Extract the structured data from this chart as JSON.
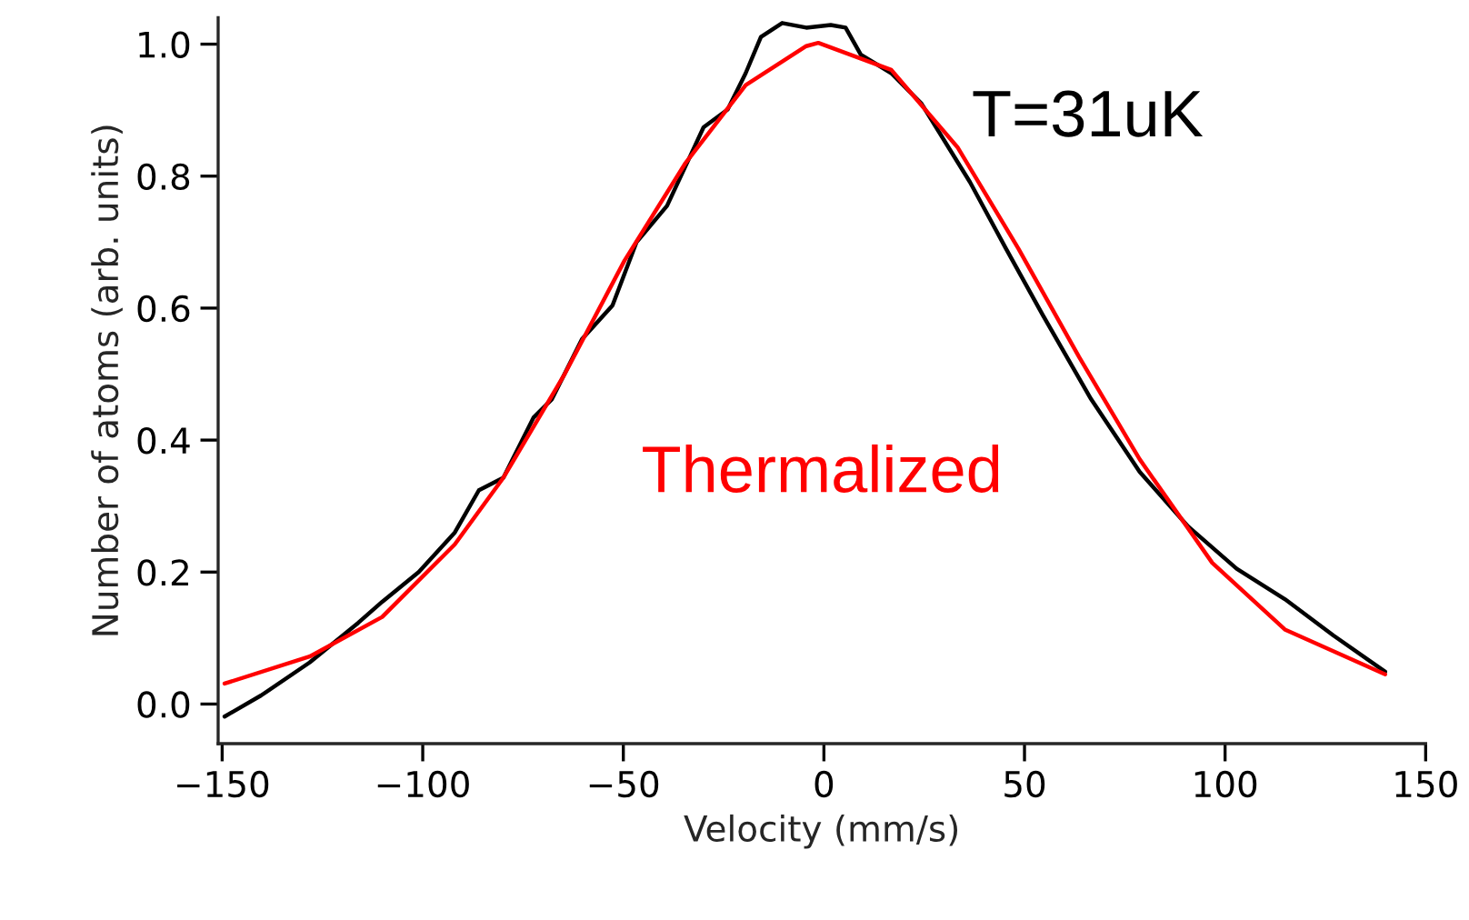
{
  "chart_data": {
    "type": "line",
    "xlabel": "Velocity (mm/s)",
    "ylabel": "Number of atoms (arb. units)",
    "xlim": [
      -151,
      150
    ],
    "ylim": [
      -0.06,
      1.04
    ],
    "xticks": [
      {
        "value": -150,
        "label": "−150"
      },
      {
        "value": -100,
        "label": "−100"
      },
      {
        "value": -50,
        "label": "−50"
      },
      0,
      50,
      100,
      150
    ],
    "yticks": [
      {
        "value": 0,
        "label": "0.0"
      },
      {
        "value": 0.2,
        "label": "0.2"
      },
      {
        "value": 0.4,
        "label": "0.4"
      },
      {
        "value": 0.6,
        "label": "0.6"
      },
      {
        "value": 0.8,
        "label": "0.8"
      },
      {
        "value": 1,
        "label": "1.0"
      }
    ],
    "grid": false,
    "legend": false,
    "marker": "none",
    "line_style": "solid",
    "annotations": [
      "T=31uK",
      "Thermalized"
    ],
    "series": [
      {
        "color": "#000000",
        "x": [
          -149.4,
          -140.3,
          -128.2,
          -116.1,
          -110.1,
          -101,
          -92,
          -86,
          -79.9,
          -72.4,
          -67.8,
          -60.3,
          -52.7,
          -46.7,
          -39.1,
          -30,
          -24,
          -19.5,
          -15.7,
          -10.4,
          -4.4,
          1.7,
          5.4,
          9.2,
          16.8,
          24.3,
          36.4,
          45.4,
          54.5,
          66.6,
          78.7,
          90.8,
          102.9,
          114.9,
          127,
          139.9
        ],
        "values": [
          -0.019,
          0.013,
          0.063,
          0.123,
          0.155,
          0.2,
          0.26,
          0.324,
          0.343,
          0.434,
          0.462,
          0.553,
          0.604,
          0.7,
          0.755,
          0.874,
          0.901,
          0.956,
          1.011,
          1.032,
          1.025,
          1.029,
          1.025,
          0.984,
          0.956,
          0.91,
          0.791,
          0.69,
          0.59,
          0.462,
          0.352,
          0.269,
          0.205,
          0.159,
          0.104,
          0.049
        ]
      },
      {
        "color": "#ff0000",
        "x": [
          -149.4,
          -128.2,
          -110.1,
          -92,
          -79.9,
          -64.8,
          -49.7,
          -34.6,
          -19.5,
          -4.4,
          -1.4,
          16.8,
          33.4,
          48.5,
          63.6,
          78.7,
          96.8,
          114.9,
          139.9
        ],
        "values": [
          0.031,
          0.072,
          0.132,
          0.242,
          0.343,
          0.498,
          0.672,
          0.819,
          0.938,
          0.997,
          1.002,
          0.961,
          0.843,
          0.69,
          0.526,
          0.371,
          0.214,
          0.113,
          0.045
        ]
      }
    ]
  }
}
